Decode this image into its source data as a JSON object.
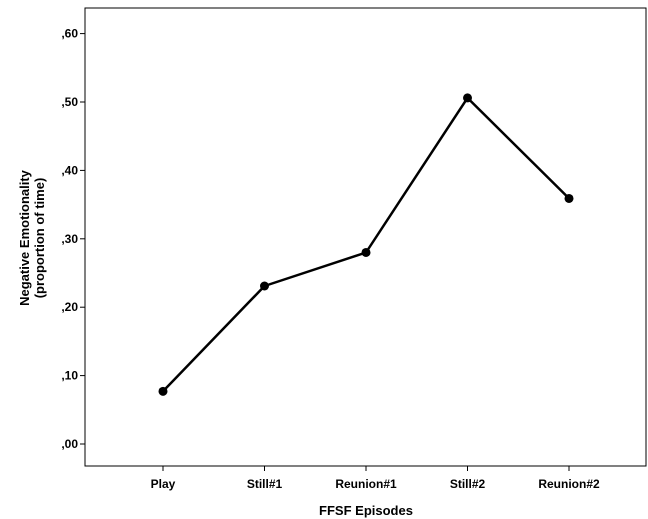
{
  "chart_data": {
    "type": "line",
    "title": "",
    "xlabel": "FFSF Episodes",
    "ylabel": [
      "Negative Emotionality",
      "(proportion of time)"
    ],
    "categories": [
      "Play",
      "Still#1",
      "Reunion#1",
      "Still#2",
      "Reunion#2"
    ],
    "series": [
      {
        "values": [
          0.077,
          0.231,
          0.28,
          0.506,
          0.359
        ]
      }
    ],
    "ylim": [
      0,
      0.62
    ],
    "yticks": [
      0.0,
      0.1,
      0.2,
      0.3,
      0.4,
      0.5,
      0.6
    ],
    "ytick_labels": [
      ",00",
      ",10",
      ",20",
      ",30",
      ",40",
      ",50",
      ",60"
    ],
    "grid": false,
    "line_color": "#000000",
    "marker": "filled-circle"
  }
}
